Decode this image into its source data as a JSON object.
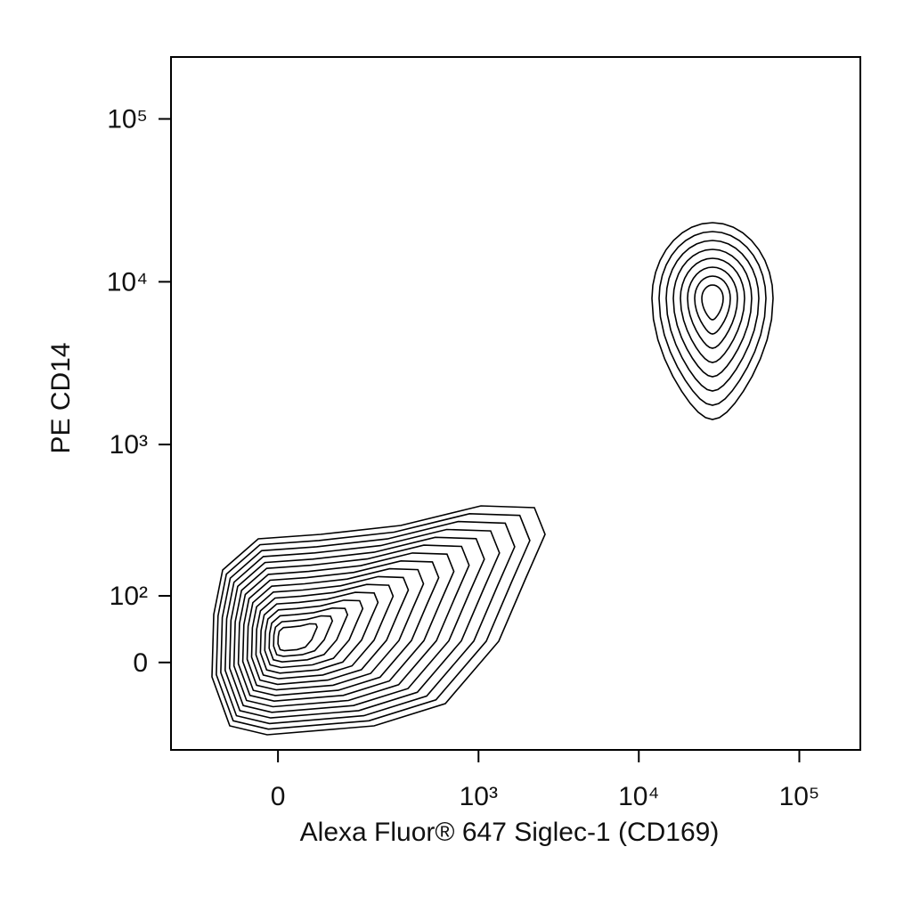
{
  "chart_data": {
    "type": "contour",
    "x_label": "Alexa Fluor® 647 Siglec-1 (CD169)",
    "y_label": "PE CD14",
    "xscale": "biexponential",
    "yscale": "biexponential",
    "xlim": [
      -250,
      240000
    ],
    "ylim": [
      -145,
      240000
    ],
    "xticks": [
      0,
      {
        "value": 1000,
        "label": "10³"
      },
      {
        "value": 10000,
        "label": "10⁴"
      },
      {
        "value": 100000,
        "label": "10⁵"
      }
    ],
    "yticks": [
      0,
      {
        "value": 100,
        "label": "10²"
      },
      {
        "value": 1000,
        "label": "10³"
      },
      {
        "value": 10000,
        "label": "10⁴"
      },
      {
        "value": 100000,
        "label": "10⁵"
      }
    ],
    "color": "#000000"
  }
}
